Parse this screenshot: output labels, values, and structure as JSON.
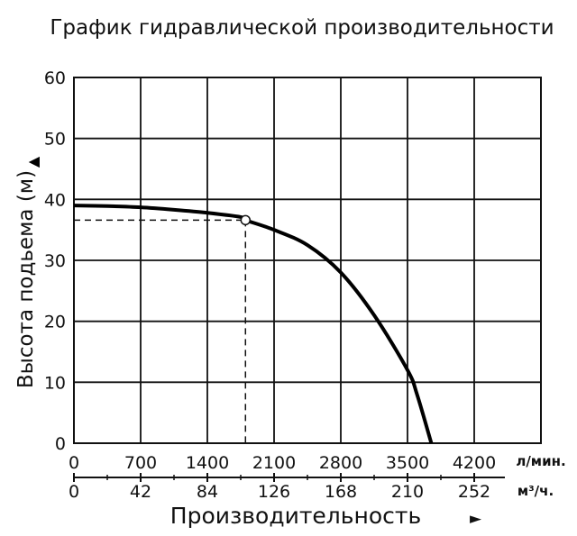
{
  "chart_data": {
    "type": "line",
    "title": "График гидравлической производительности",
    "ylabel": "Высота подьема (м)",
    "ylabel_arrow": "▲",
    "xlabel": "Производительность",
    "xlabel_arrow": "►",
    "xlim": [
      0,
      4900
    ],
    "ylim": [
      0,
      60
    ],
    "grid": true,
    "y_ticks": [
      "0",
      "10",
      "20",
      "30",
      "40",
      "50",
      "60"
    ],
    "x_ticks_primary": [
      "0",
      "700",
      "1400",
      "2100",
      "2800",
      "3500",
      "4200"
    ],
    "x_ticks_secondary": [
      "0",
      "42",
      "84",
      "126",
      "168",
      "210",
      "252"
    ],
    "x_unit_primary": "л/мин.",
    "x_unit_secondary": "м³/ч.",
    "series": [
      {
        "x": [
          0,
          350,
          700,
          1050,
          1400,
          1750,
          1800,
          2100,
          2450,
          2800,
          3150,
          3500,
          3600,
          3750
        ],
        "y": [
          39,
          38.9,
          38.7,
          38.3,
          37.8,
          37.1,
          36.6,
          35,
          32.5,
          28,
          21,
          12,
          8,
          0
        ],
        "color": "#000000"
      }
    ],
    "operating_point": {
      "x": 1800,
      "y": 36.6
    }
  }
}
